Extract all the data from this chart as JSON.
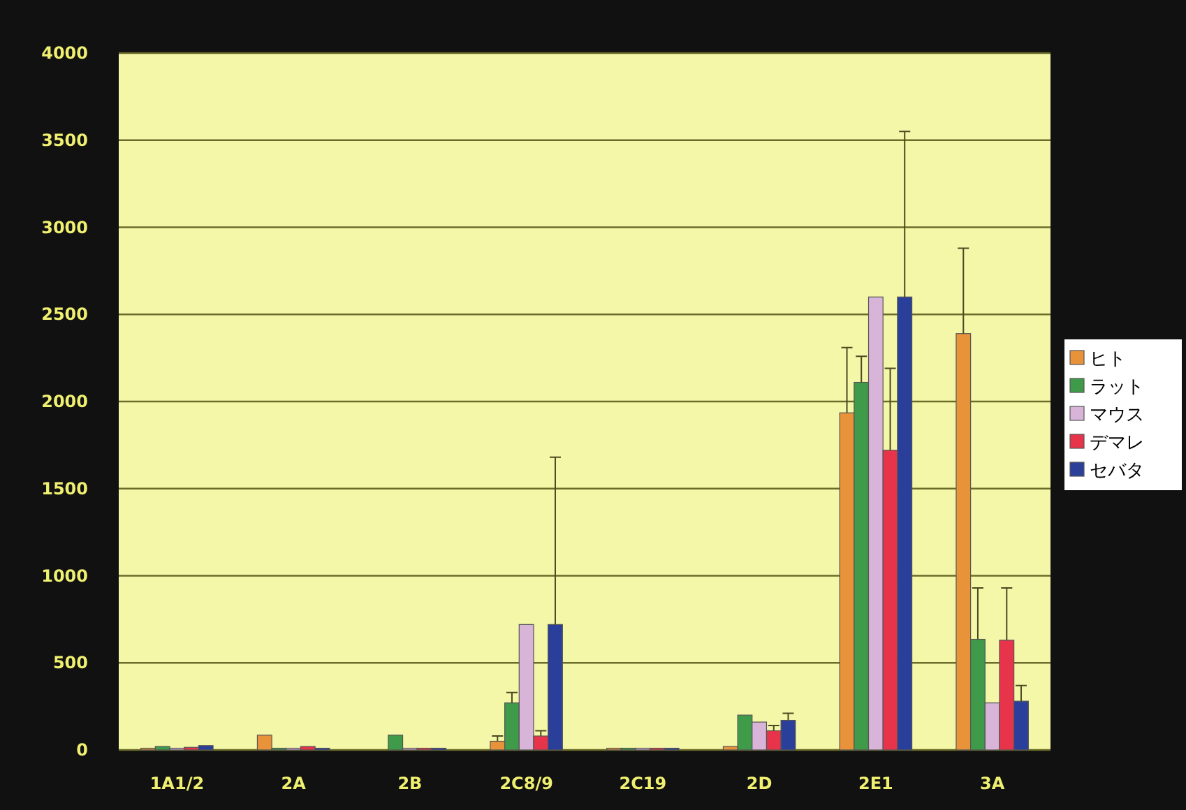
{
  "chart_data": {
    "type": "bar",
    "categories": [
      "1A1/2",
      "2A",
      "2B",
      "2C8/9",
      "2C19",
      "2D",
      "2E1",
      "3A"
    ],
    "series": [
      {
        "name": "ヒト",
        "color": "#e8923a",
        "values": [
          10,
          85,
          null,
          50,
          10,
          20,
          1935,
          2390
        ],
        "errors": [
          null,
          null,
          null,
          [
            50,
            80
          ],
          null,
          null,
          [
            1935,
            2310
          ],
          [
            2390,
            2880
          ]
        ]
      },
      {
        "name": "ラット",
        "color": "#3f9a4a",
        "values": [
          20,
          10,
          85,
          270,
          10,
          200,
          2110,
          635
        ],
        "errors": [
          null,
          null,
          null,
          [
            270,
            330
          ],
          null,
          null,
          [
            2110,
            2260
          ],
          [
            635,
            930
          ]
        ]
      },
      {
        "name": "マウス",
        "color": "#d8b4d8",
        "values": [
          10,
          10,
          10,
          720,
          10,
          160,
          2600,
          270
        ],
        "errors": [
          null,
          null,
          null,
          null,
          null,
          null,
          null,
          null
        ]
      },
      {
        "name": "デマレ",
        "color": "#e8344a",
        "values": [
          15,
          20,
          10,
          80,
          10,
          110,
          1720,
          630
        ],
        "errors": [
          null,
          null,
          null,
          [
            80,
            110
          ],
          null,
          [
            110,
            140
          ],
          [
            1720,
            2190
          ],
          [
            630,
            930
          ]
        ]
      },
      {
        "name": "セバタ",
        "color": "#2a3f9a",
        "values": [
          25,
          10,
          10,
          720,
          10,
          170,
          2600,
          280
        ],
        "errors": [
          null,
          null,
          null,
          [
            720,
            1680
          ],
          null,
          [
            170,
            210
          ],
          [
            2600,
            3550
          ],
          [
            280,
            370
          ]
        ]
      }
    ],
    "ylim": [
      0,
      4000
    ],
    "yticks": [
      0,
      500,
      1000,
      1500,
      2000,
      2500,
      3000,
      3500,
      4000
    ],
    "grid": "y",
    "legend": "right"
  }
}
